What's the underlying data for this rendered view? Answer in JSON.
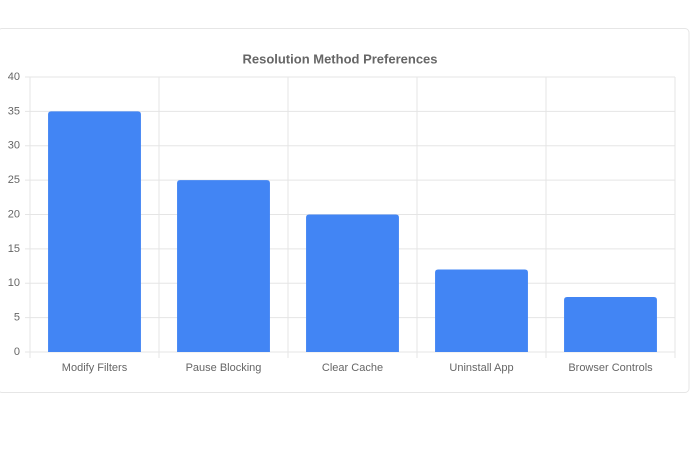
{
  "chart_data": {
    "type": "bar",
    "title": "Resolution Method Preferences",
    "categories": [
      "Modify Filters",
      "Pause Blocking",
      "Clear Cache",
      "Uninstall App",
      "Browser Controls"
    ],
    "values": [
      35,
      25,
      20,
      12,
      8
    ],
    "color": "#4285f4",
    "ylim": [
      0,
      40
    ],
    "yticks": [
      0,
      5,
      10,
      15,
      20,
      25,
      30,
      35,
      40
    ],
    "grid": true
  }
}
